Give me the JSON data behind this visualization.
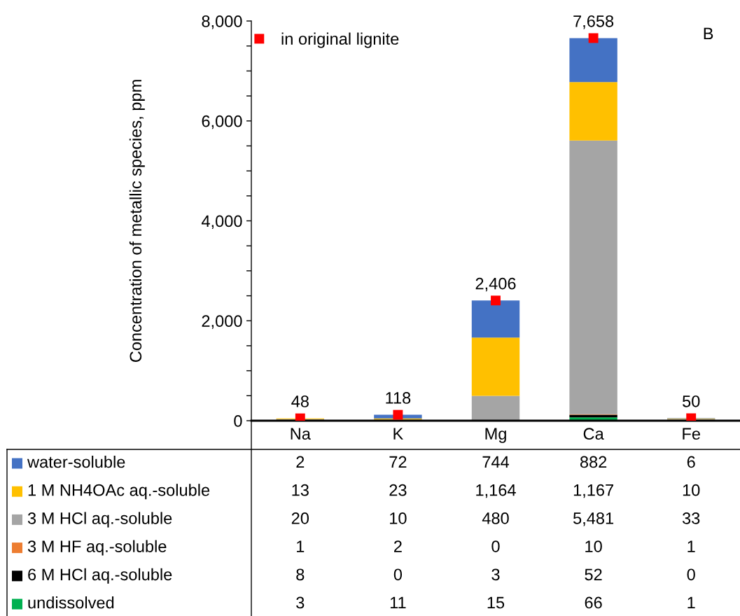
{
  "chart_data": {
    "type": "bar",
    "stacked": true,
    "categories": [
      "Na",
      "K",
      "Mg",
      "Ca",
      "Fe"
    ],
    "ylabel": "Concentration of metallic species, ppm",
    "ylim": [
      0,
      8000
    ],
    "yticks": [
      0,
      {
        "value": 500,
        "label": null
      },
      {
        "value": 1000,
        "label": null
      },
      {
        "value": 1500,
        "label": null
      },
      {
        "value": 2000,
        "label": "2,000"
      },
      {
        "value": 2500,
        "label": null
      },
      {
        "value": 3000,
        "label": null
      },
      {
        "value": 3500,
        "label": null
      },
      {
        "value": 4000,
        "label": "4,000"
      },
      {
        "value": 4500,
        "label": null
      },
      {
        "value": 5000,
        "label": null
      },
      {
        "value": 5500,
        "label": null
      },
      {
        "value": 6000,
        "label": "6,000"
      },
      {
        "value": 6500,
        "label": null
      },
      {
        "value": 7000,
        "label": null
      },
      {
        "value": 7500,
        "label": null
      },
      {
        "value": 8000,
        "label": "8,000"
      }
    ],
    "legend": "bottom left",
    "annotations": [
      "B"
    ],
    "series": [
      {
        "name": "undissolved",
        "color": "#00b050",
        "values": [
          3,
          11,
          15,
          66,
          1
        ],
        "value_labels": [
          "3",
          "11",
          "15",
          "66",
          "1"
        ]
      },
      {
        "name": "6 M HCl aq.-soluble",
        "color": "#000000",
        "values": [
          8,
          0,
          3,
          52,
          0
        ],
        "value_labels": [
          "8",
          "0",
          "3",
          "52",
          "0"
        ]
      },
      {
        "name": "3 M HF aq.-soluble",
        "color": "#ed7d31",
        "values": [
          1,
          2,
          0,
          10,
          1
        ],
        "value_labels": [
          "1",
          "2",
          "0",
          "10",
          "1"
        ]
      },
      {
        "name": "3 M HCl aq.-soluble",
        "color": "#a5a5a5",
        "values": [
          20,
          10,
          480,
          5481,
          33
        ],
        "value_labels": [
          "20",
          "10",
          "480",
          "5,481",
          "33"
        ]
      },
      {
        "name": "1 M NH4OAc aq.-soluble",
        "color": "#ffc000",
        "values": [
          13,
          23,
          1164,
          1167,
          10
        ],
        "value_labels": [
          "13",
          "23",
          "1,164",
          "1,167",
          "10"
        ]
      },
      {
        "name": "water-soluble",
        "color": "#4472c4",
        "values": [
          2,
          72,
          744,
          882,
          6
        ],
        "value_labels": [
          "2",
          "72",
          "744",
          "882",
          "6"
        ]
      },
      {
        "name": "in original lignite",
        "type": "scatter",
        "marker": "square",
        "color": "#ff0000",
        "values": [
          48,
          118,
          2406,
          7658,
          50
        ],
        "value_labels": [
          "48",
          "118",
          "2,406",
          "7,658",
          "50"
        ]
      }
    ]
  }
}
